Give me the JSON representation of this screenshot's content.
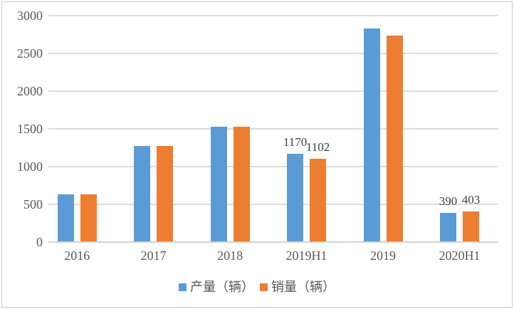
{
  "chart_data": {
    "type": "bar",
    "title": "",
    "categories": [
      "2016",
      "2017",
      "2018",
      "2019H1",
      "2019",
      "2020H1"
    ],
    "series": [
      {
        "name": "产量（辆）",
        "color": "#5B9BD5",
        "values": [
          629,
          1272,
          1527,
          1170,
          2833,
          390
        ]
      },
      {
        "name": "销量（辆）",
        "color": "#ED7D31",
        "values": [
          629,
          1275,
          1527,
          1102,
          2737,
          403
        ]
      }
    ],
    "data_labels": {
      "3": [
        "1170",
        "1102"
      ],
      "5": [
        "390",
        "403"
      ]
    },
    "y_axis": {
      "min": 0,
      "max": 3000,
      "step": 500,
      "tick_labels": [
        "0",
        "500",
        "1000",
        "1500",
        "2000",
        "2500",
        "3000"
      ]
    },
    "grid": true,
    "legend_position": "bottom",
    "style": {
      "gridline_color": "#DCDCDC",
      "axis_line_color": "#D2D2D2",
      "text_color": "#595959",
      "data_label_color": "#404040",
      "frame_border_color": "#C8C8C8"
    }
  }
}
